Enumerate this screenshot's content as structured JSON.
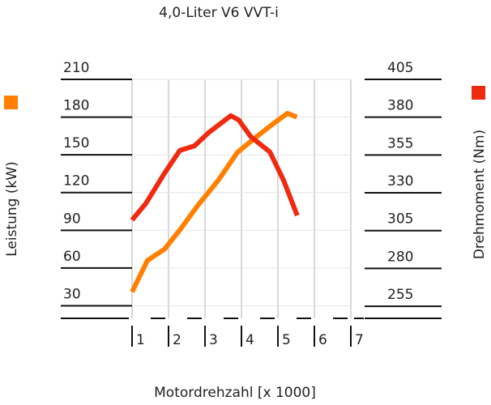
{
  "chart_data": {
    "type": "line",
    "title": "4,0-Liter V6 VVT-i",
    "xlabel": "Motordrehzahl [x 1000]",
    "ylabel": "Leistung (kW)",
    "y2label": "Drehmoment (Nm)",
    "xlim": [
      1,
      7
    ],
    "xticks": [
      1,
      2,
      3,
      4,
      5,
      6,
      7
    ],
    "ylim": [
      20,
      210
    ],
    "yticks": [
      30,
      60,
      90,
      120,
      150,
      180,
      210
    ],
    "y2lim": [
      247,
      405
    ],
    "y2ticks": [
      255,
      280,
      305,
      330,
      355,
      380,
      405
    ],
    "grid": true,
    "series": [
      {
        "color": "#ff7f00",
        "x": [
          1,
          1.42,
          1.89,
          2.33,
          2.81,
          3.37,
          3.89,
          4.44,
          4.93,
          5.26,
          5.52
        ],
        "values": [
          41,
          66,
          75,
          91,
          110,
          130,
          152,
          165,
          176,
          183,
          180
        ]
      },
      {
        "color": "#f02a10",
        "axis": "y2",
        "x": [
          1,
          1.38,
          1.89,
          2.31,
          2.71,
          3.11,
          3.71,
          3.93,
          4.26,
          4.78,
          5.16,
          5.53
        ],
        "values": [
          312,
          323,
          343,
          358,
          361,
          370,
          381,
          378,
          367,
          357,
          338,
          315
        ]
      }
    ]
  }
}
